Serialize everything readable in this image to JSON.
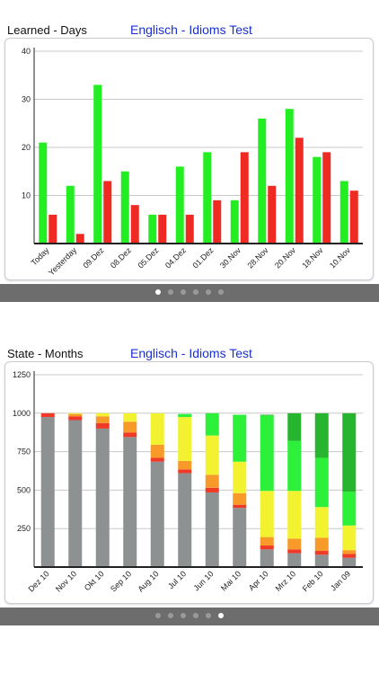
{
  "panels": [
    {
      "header_left": "Learned - Days",
      "header_title": "Englisch - Idioms Test",
      "pager": {
        "count": 6,
        "active": 0
      }
    },
    {
      "header_left": "State - Months",
      "header_title": "Englisch - Idioms Test",
      "pager": {
        "count": 6,
        "active": 5
      }
    }
  ],
  "colors": {
    "green": "#22ee22",
    "red": "#ee2a22",
    "gray": "#8e9191",
    "orange_red": "#f03a28",
    "orange": "#f79a2a",
    "yellow": "#f2f230",
    "light_green": "#2cf03a",
    "dark_green": "#27b52f",
    "title_blue": "#1a2fd0",
    "pager_bg": "#6d6d6d"
  },
  "chart_data": [
    {
      "type": "bar",
      "categories": [
        "Today",
        "Yesterday",
        "09.Dez",
        "08.Dez",
        "05.Dez",
        "04.Dez",
        "01.Dez",
        "30.Nov",
        "28.Nov",
        "20.Nov",
        "18.Nov",
        "10.Nov"
      ],
      "series": [
        {
          "values": [
            21,
            12,
            33,
            15,
            6,
            16,
            19,
            9,
            26,
            28,
            18,
            13
          ],
          "color": "#22ee22"
        },
        {
          "values": [
            6,
            2,
            13,
            8,
            6,
            6,
            9,
            19,
            12,
            22,
            19,
            11
          ],
          "color": "#ee2a22"
        }
      ],
      "ylim": [
        0,
        40
      ],
      "yticks": [
        10,
        20,
        30,
        40
      ],
      "grid": true
    },
    {
      "type": "bar",
      "stacked": true,
      "categories": [
        "Dez 10",
        "Nov 10",
        "Okt 10",
        "Sep 10",
        "Aug 10",
        "Jul 10",
        "Jun 10",
        "Mai 10",
        "Apr 10",
        "Mrz 10",
        "Feb 10",
        "Jan 09"
      ],
      "series": [
        {
          "color": "#8e9191",
          "values": [
            975,
            955,
            900,
            845,
            685,
            610,
            485,
            385,
            115,
            90,
            80,
            60
          ]
        },
        {
          "color": "#f03a28",
          "values": [
            25,
            25,
            35,
            30,
            25,
            25,
            30,
            20,
            25,
            25,
            25,
            25
          ]
        },
        {
          "color": "#f79a2a",
          "values": [
            0,
            15,
            45,
            70,
            85,
            55,
            85,
            75,
            55,
            70,
            85,
            25
          ]
        },
        {
          "color": "#f2f230",
          "values": [
            0,
            5,
            20,
            55,
            205,
            285,
            255,
            205,
            300,
            310,
            200,
            160
          ]
        },
        {
          "color": "#2cf03a",
          "values": [
            0,
            0,
            0,
            0,
            0,
            20,
            145,
            305,
            490,
            325,
            320,
            220
          ]
        },
        {
          "color": "#27b52f",
          "values": [
            0,
            0,
            0,
            0,
            0,
            0,
            0,
            0,
            5,
            180,
            290,
            510
          ]
        }
      ],
      "ylim": [
        0,
        1250
      ],
      "yticks": [
        250,
        500,
        750,
        1000,
        1250
      ],
      "grid": true
    }
  ]
}
